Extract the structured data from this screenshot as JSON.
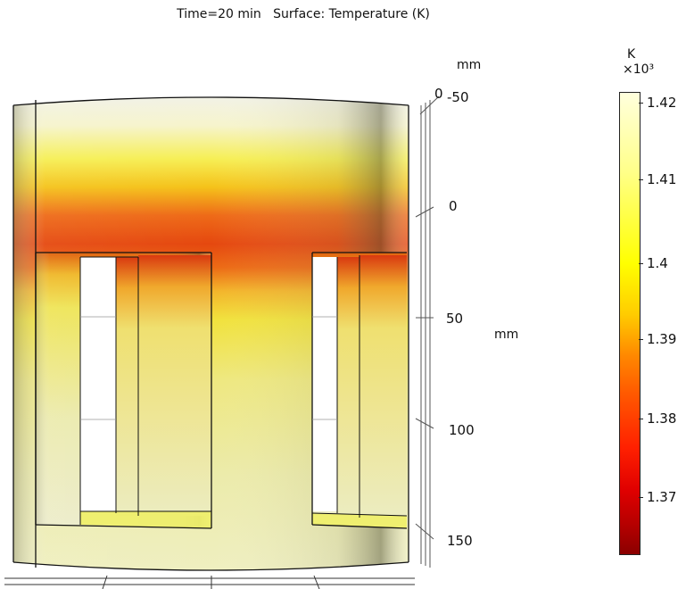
{
  "plot": {
    "title": "Time=20 min   Surface: Temperature (K)",
    "axis_unit_top": "mm",
    "axis_label_side": "mm",
    "axis_corner_label": "0",
    "axis_ticks": [
      "-50",
      "0",
      "50",
      "100",
      "150"
    ]
  },
  "colorbar": {
    "unit": "K",
    "multiplier": "×10³",
    "ticks": [
      "1.42",
      "1.41",
      "1.4",
      "1.39",
      "1.38",
      "1.37"
    ],
    "range_min": 1.362,
    "range_max": 1.423,
    "colors": [
      "#ffffdd",
      "#ffff00",
      "#ff8800",
      "#ff2000",
      "#8b0000"
    ]
  }
}
